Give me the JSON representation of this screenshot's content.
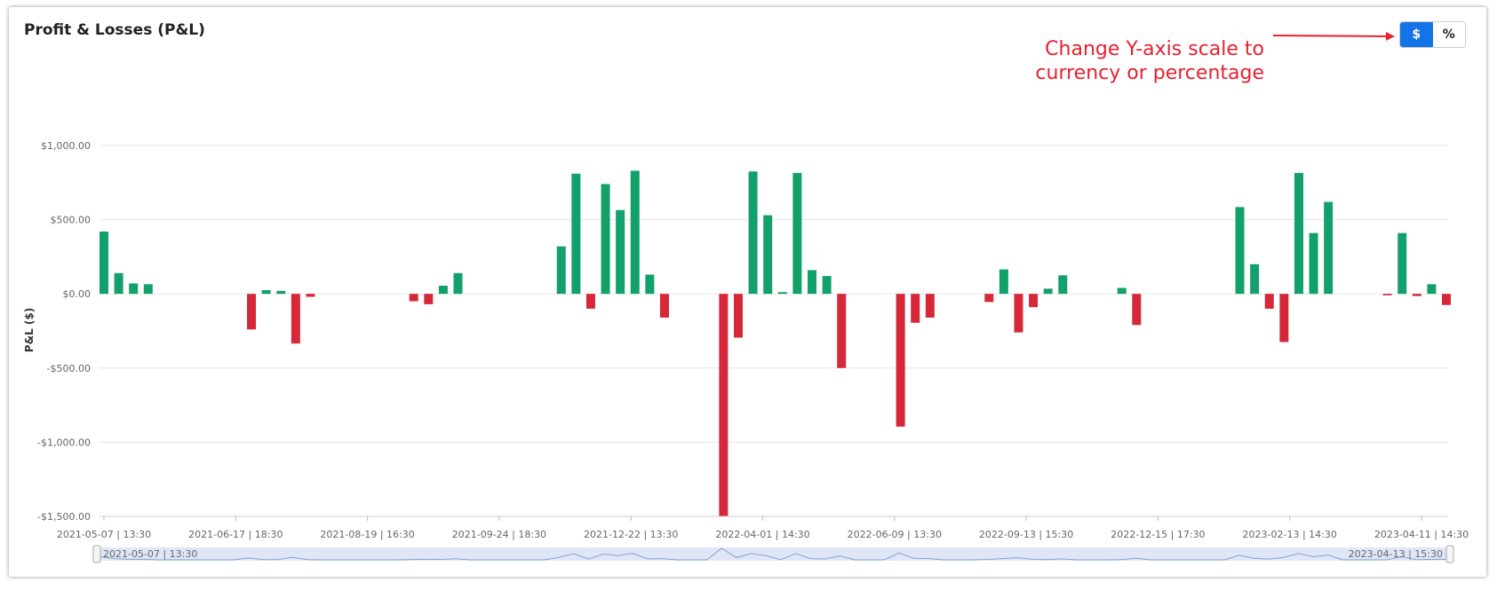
{
  "header": {
    "title": "Profit & Losses (P&L)",
    "annotation_line1": "Change Y-axis scale to",
    "annotation_line2": "currency or percentage"
  },
  "scale_toggle": {
    "options": [
      "$",
      "%"
    ],
    "selected": "$"
  },
  "colors": {
    "profit": "#12a06b",
    "loss": "#d62839",
    "annotation": "#e8202f",
    "toggle_active": "#1473e6"
  },
  "chart_data": {
    "type": "bar",
    "ylabel": "P&L ($)",
    "ylim": [
      -1500,
      1000
    ],
    "yticks": [
      1000,
      500,
      0,
      -500,
      -1000,
      -1500
    ],
    "ytick_labels": [
      "$1,000.00",
      "$500.00",
      "$0.00",
      "-$500.00",
      "-$1,000.00",
      "-$1,500.00"
    ],
    "grid": true,
    "xtick_labels": [
      "2021-05-07 | 13:30",
      "2021-06-17 | 18:30",
      "2021-08-19 | 16:30",
      "2021-09-24 | 18:30",
      "2021-12-22 | 13:30",
      "2022-04-01 | 14:30",
      "2022-06-09 | 13:30",
      "2022-09-13 | 15:30",
      "2022-12-15 | 17:30",
      "2023-02-13 | 14:30",
      "2023-04-11 | 14:30"
    ],
    "slot_count": 92,
    "bars": [
      {
        "slot": 0,
        "value": 420
      },
      {
        "slot": 1,
        "value": 140
      },
      {
        "slot": 2,
        "value": 70
      },
      {
        "slot": 3,
        "value": 65
      },
      {
        "slot": 10,
        "value": -240
      },
      {
        "slot": 11,
        "value": 25
      },
      {
        "slot": 12,
        "value": 20
      },
      {
        "slot": 13,
        "value": -335
      },
      {
        "slot": 14,
        "value": -20
      },
      {
        "slot": 21,
        "value": -50
      },
      {
        "slot": 22,
        "value": -70
      },
      {
        "slot": 23,
        "value": 55
      },
      {
        "slot": 24,
        "value": 140
      },
      {
        "slot": 31,
        "value": 320
      },
      {
        "slot": 32,
        "value": 810
      },
      {
        "slot": 33,
        "value": -100
      },
      {
        "slot": 34,
        "value": 740
      },
      {
        "slot": 35,
        "value": 565
      },
      {
        "slot": 36,
        "value": 830
      },
      {
        "slot": 37,
        "value": 130
      },
      {
        "slot": 38,
        "value": -160
      },
      {
        "slot": 42,
        "value": -1500
      },
      {
        "slot": 43,
        "value": -295
      },
      {
        "slot": 44,
        "value": 825
      },
      {
        "slot": 45,
        "value": 530
      },
      {
        "slot": 46,
        "value": 12
      },
      {
        "slot": 47,
        "value": 815
      },
      {
        "slot": 48,
        "value": 160
      },
      {
        "slot": 49,
        "value": 120
      },
      {
        "slot": 50,
        "value": -500
      },
      {
        "slot": 54,
        "value": -895
      },
      {
        "slot": 55,
        "value": -195
      },
      {
        "slot": 56,
        "value": -160
      },
      {
        "slot": 60,
        "value": -55
      },
      {
        "slot": 61,
        "value": 165
      },
      {
        "slot": 62,
        "value": -260
      },
      {
        "slot": 63,
        "value": -90
      },
      {
        "slot": 64,
        "value": 35
      },
      {
        "slot": 65,
        "value": 125
      },
      {
        "slot": 69,
        "value": 40
      },
      {
        "slot": 70,
        "value": -210
      },
      {
        "slot": 77,
        "value": 585
      },
      {
        "slot": 78,
        "value": 200
      },
      {
        "slot": 79,
        "value": -100
      },
      {
        "slot": 80,
        "value": -325
      },
      {
        "slot": 81,
        "value": 815
      },
      {
        "slot": 82,
        "value": 410
      },
      {
        "slot": 83,
        "value": 620
      },
      {
        "slot": 87,
        "value": -10
      },
      {
        "slot": 88,
        "value": 410
      },
      {
        "slot": 89,
        "value": -15
      },
      {
        "slot": 90,
        "value": 65
      },
      {
        "slot": 91,
        "value": -75
      }
    ]
  },
  "range_slider": {
    "start_label": "2021-05-07 | 13:30",
    "end_label": "2023-04-13 | 15:30"
  }
}
